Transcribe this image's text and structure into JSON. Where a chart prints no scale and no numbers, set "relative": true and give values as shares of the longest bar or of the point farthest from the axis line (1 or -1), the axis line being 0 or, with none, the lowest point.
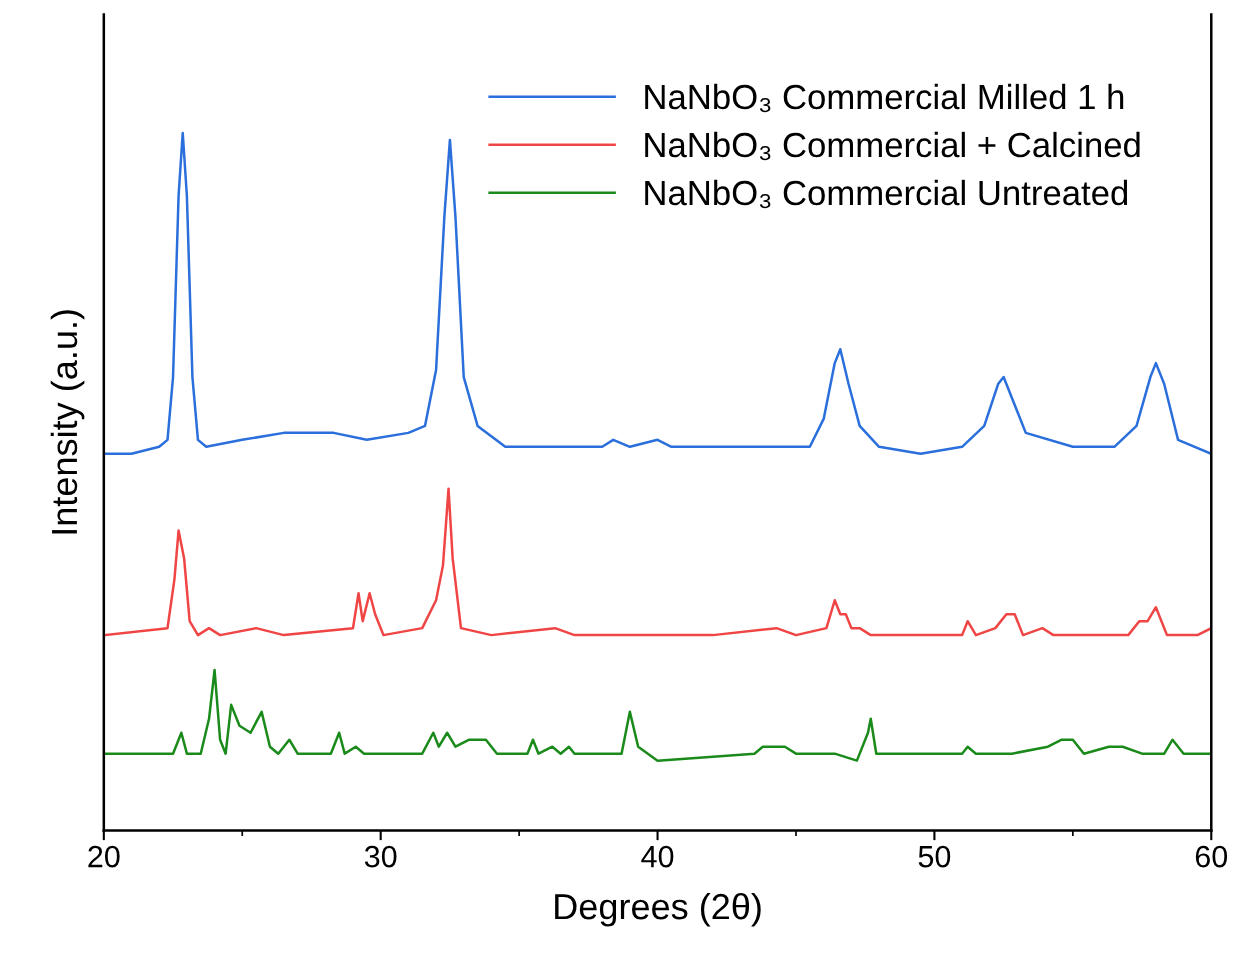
{
  "chart_data": {
    "type": "line",
    "relative": true,
    "xlabel": "Degrees (2θ)",
    "ylabel": "Intensity (a.u.)",
    "xlim": [
      20,
      60
    ],
    "xticks": [
      20,
      30,
      40,
      50,
      60
    ],
    "tick_labels": "x",
    "legend": "top right",
    "grid": false,
    "marker": "none",
    "line_style": "solid",
    "series": [
      {
        "name": "NaNbO₃ Commercial Milled 1 h",
        "color": "#2a6fdb",
        "x": [
          20,
          21,
          22,
          22.3,
          22.5,
          22.7,
          22.85,
          23.0,
          23.2,
          23.4,
          23.7,
          25,
          26.5,
          27.3,
          28.3,
          29.5,
          31,
          31.6,
          32.0,
          32.3,
          32.5,
          32.7,
          33.0,
          33.5,
          34.5,
          36,
          38,
          38.4,
          39,
          40.0,
          40.5,
          42,
          44,
          45.5,
          46.0,
          46.4,
          46.6,
          46.9,
          47.3,
          48,
          49.5,
          51,
          51.8,
          52.3,
          52.5,
          52.8,
          53.3,
          55.0,
          56.5,
          57.3,
          57.8,
          58.0,
          58.3,
          58.8,
          60
        ],
        "values": [
          0.54,
          0.54,
          0.55,
          0.56,
          0.65,
          0.91,
          1.0,
          0.91,
          0.65,
          0.56,
          0.55,
          0.56,
          0.57,
          0.57,
          0.57,
          0.56,
          0.57,
          0.58,
          0.66,
          0.88,
          0.99,
          0.88,
          0.65,
          0.58,
          0.55,
          0.55,
          0.55,
          0.56,
          0.55,
          0.56,
          0.55,
          0.55,
          0.55,
          0.55,
          0.59,
          0.67,
          0.69,
          0.64,
          0.58,
          0.55,
          0.54,
          0.55,
          0.58,
          0.64,
          0.65,
          0.62,
          0.57,
          0.55,
          0.55,
          0.58,
          0.65,
          0.67,
          0.64,
          0.56,
          0.54
        ]
      },
      {
        "name": "NaNbO₃ Commercial + Calcined",
        "color": "#f04545",
        "x": [
          20,
          22.3,
          22.55,
          22.7,
          22.9,
          23.1,
          23.4,
          23.8,
          24.2,
          25.5,
          26.5,
          29.0,
          29.2,
          29.35,
          29.6,
          29.8,
          30.1,
          31.5,
          32.0,
          32.25,
          32.45,
          32.6,
          32.9,
          34,
          36.3,
          37,
          39,
          40.0,
          42,
          44.3,
          45,
          46.1,
          46.4,
          46.6,
          46.8,
          47.0,
          47.3,
          47.7,
          50.5,
          51.0,
          51.2,
          51.5,
          52.2,
          52.6,
          52.9,
          53.2,
          53.9,
          54.3,
          57.0,
          57.4,
          57.7,
          58.0,
          58.4,
          59.5,
          60
        ],
        "values": [
          0.28,
          0.29,
          0.36,
          0.43,
          0.39,
          0.3,
          0.28,
          0.29,
          0.28,
          0.29,
          0.28,
          0.29,
          0.34,
          0.3,
          0.34,
          0.31,
          0.28,
          0.29,
          0.33,
          0.38,
          0.49,
          0.39,
          0.29,
          0.28,
          0.29,
          0.28,
          0.28,
          0.28,
          0.28,
          0.29,
          0.28,
          0.29,
          0.33,
          0.31,
          0.31,
          0.29,
          0.29,
          0.28,
          0.28,
          0.28,
          0.3,
          0.28,
          0.29,
          0.31,
          0.31,
          0.28,
          0.29,
          0.28,
          0.28,
          0.3,
          0.3,
          0.32,
          0.28,
          0.28,
          0.29
        ]
      },
      {
        "name": "NaNbO₃ Commercial Untreated",
        "color": "#1a8a1a",
        "x": [
          20,
          22.5,
          22.8,
          23.0,
          23.5,
          23.8,
          24.0,
          24.2,
          24.4,
          24.6,
          24.9,
          25.3,
          25.7,
          26.0,
          26.3,
          26.7,
          27.0,
          28.2,
          28.5,
          28.7,
          29.1,
          29.4,
          31.5,
          31.9,
          32.1,
          32.4,
          32.7,
          33.2,
          33.8,
          34.2,
          35.3,
          35.5,
          35.7,
          36.2,
          36.5,
          36.8,
          37.0,
          38.7,
          39.0,
          39.3,
          40,
          43.5,
          43.8,
          44.3,
          44.6,
          45,
          46.2,
          46.4,
          47.2,
          47.6,
          47.7,
          47.9,
          50.1,
          51.0,
          51.2,
          51.5,
          52.8,
          54.1,
          54.6,
          55.0,
          55.4,
          56.3,
          56.8,
          57.5,
          58.3,
          58.6,
          59.0,
          59.5,
          60
        ],
        "values": [
          0.11,
          0.11,
          0.14,
          0.11,
          0.11,
          0.16,
          0.23,
          0.13,
          0.11,
          0.18,
          0.15,
          0.14,
          0.17,
          0.12,
          0.11,
          0.13,
          0.11,
          0.11,
          0.14,
          0.11,
          0.12,
          0.11,
          0.11,
          0.14,
          0.12,
          0.14,
          0.12,
          0.13,
          0.13,
          0.11,
          0.11,
          0.13,
          0.11,
          0.12,
          0.11,
          0.12,
          0.11,
          0.11,
          0.17,
          0.12,
          0.1,
          0.11,
          0.12,
          0.12,
          0.12,
          0.11,
          0.11,
          0.11,
          0.1,
          0.14,
          0.16,
          0.11,
          0.11,
          0.11,
          0.12,
          0.11,
          0.11,
          0.12,
          0.13,
          0.13,
          0.11,
          0.12,
          0.12,
          0.11,
          0.11,
          0.13,
          0.11,
          0.11,
          0.11
        ]
      }
    ]
  }
}
